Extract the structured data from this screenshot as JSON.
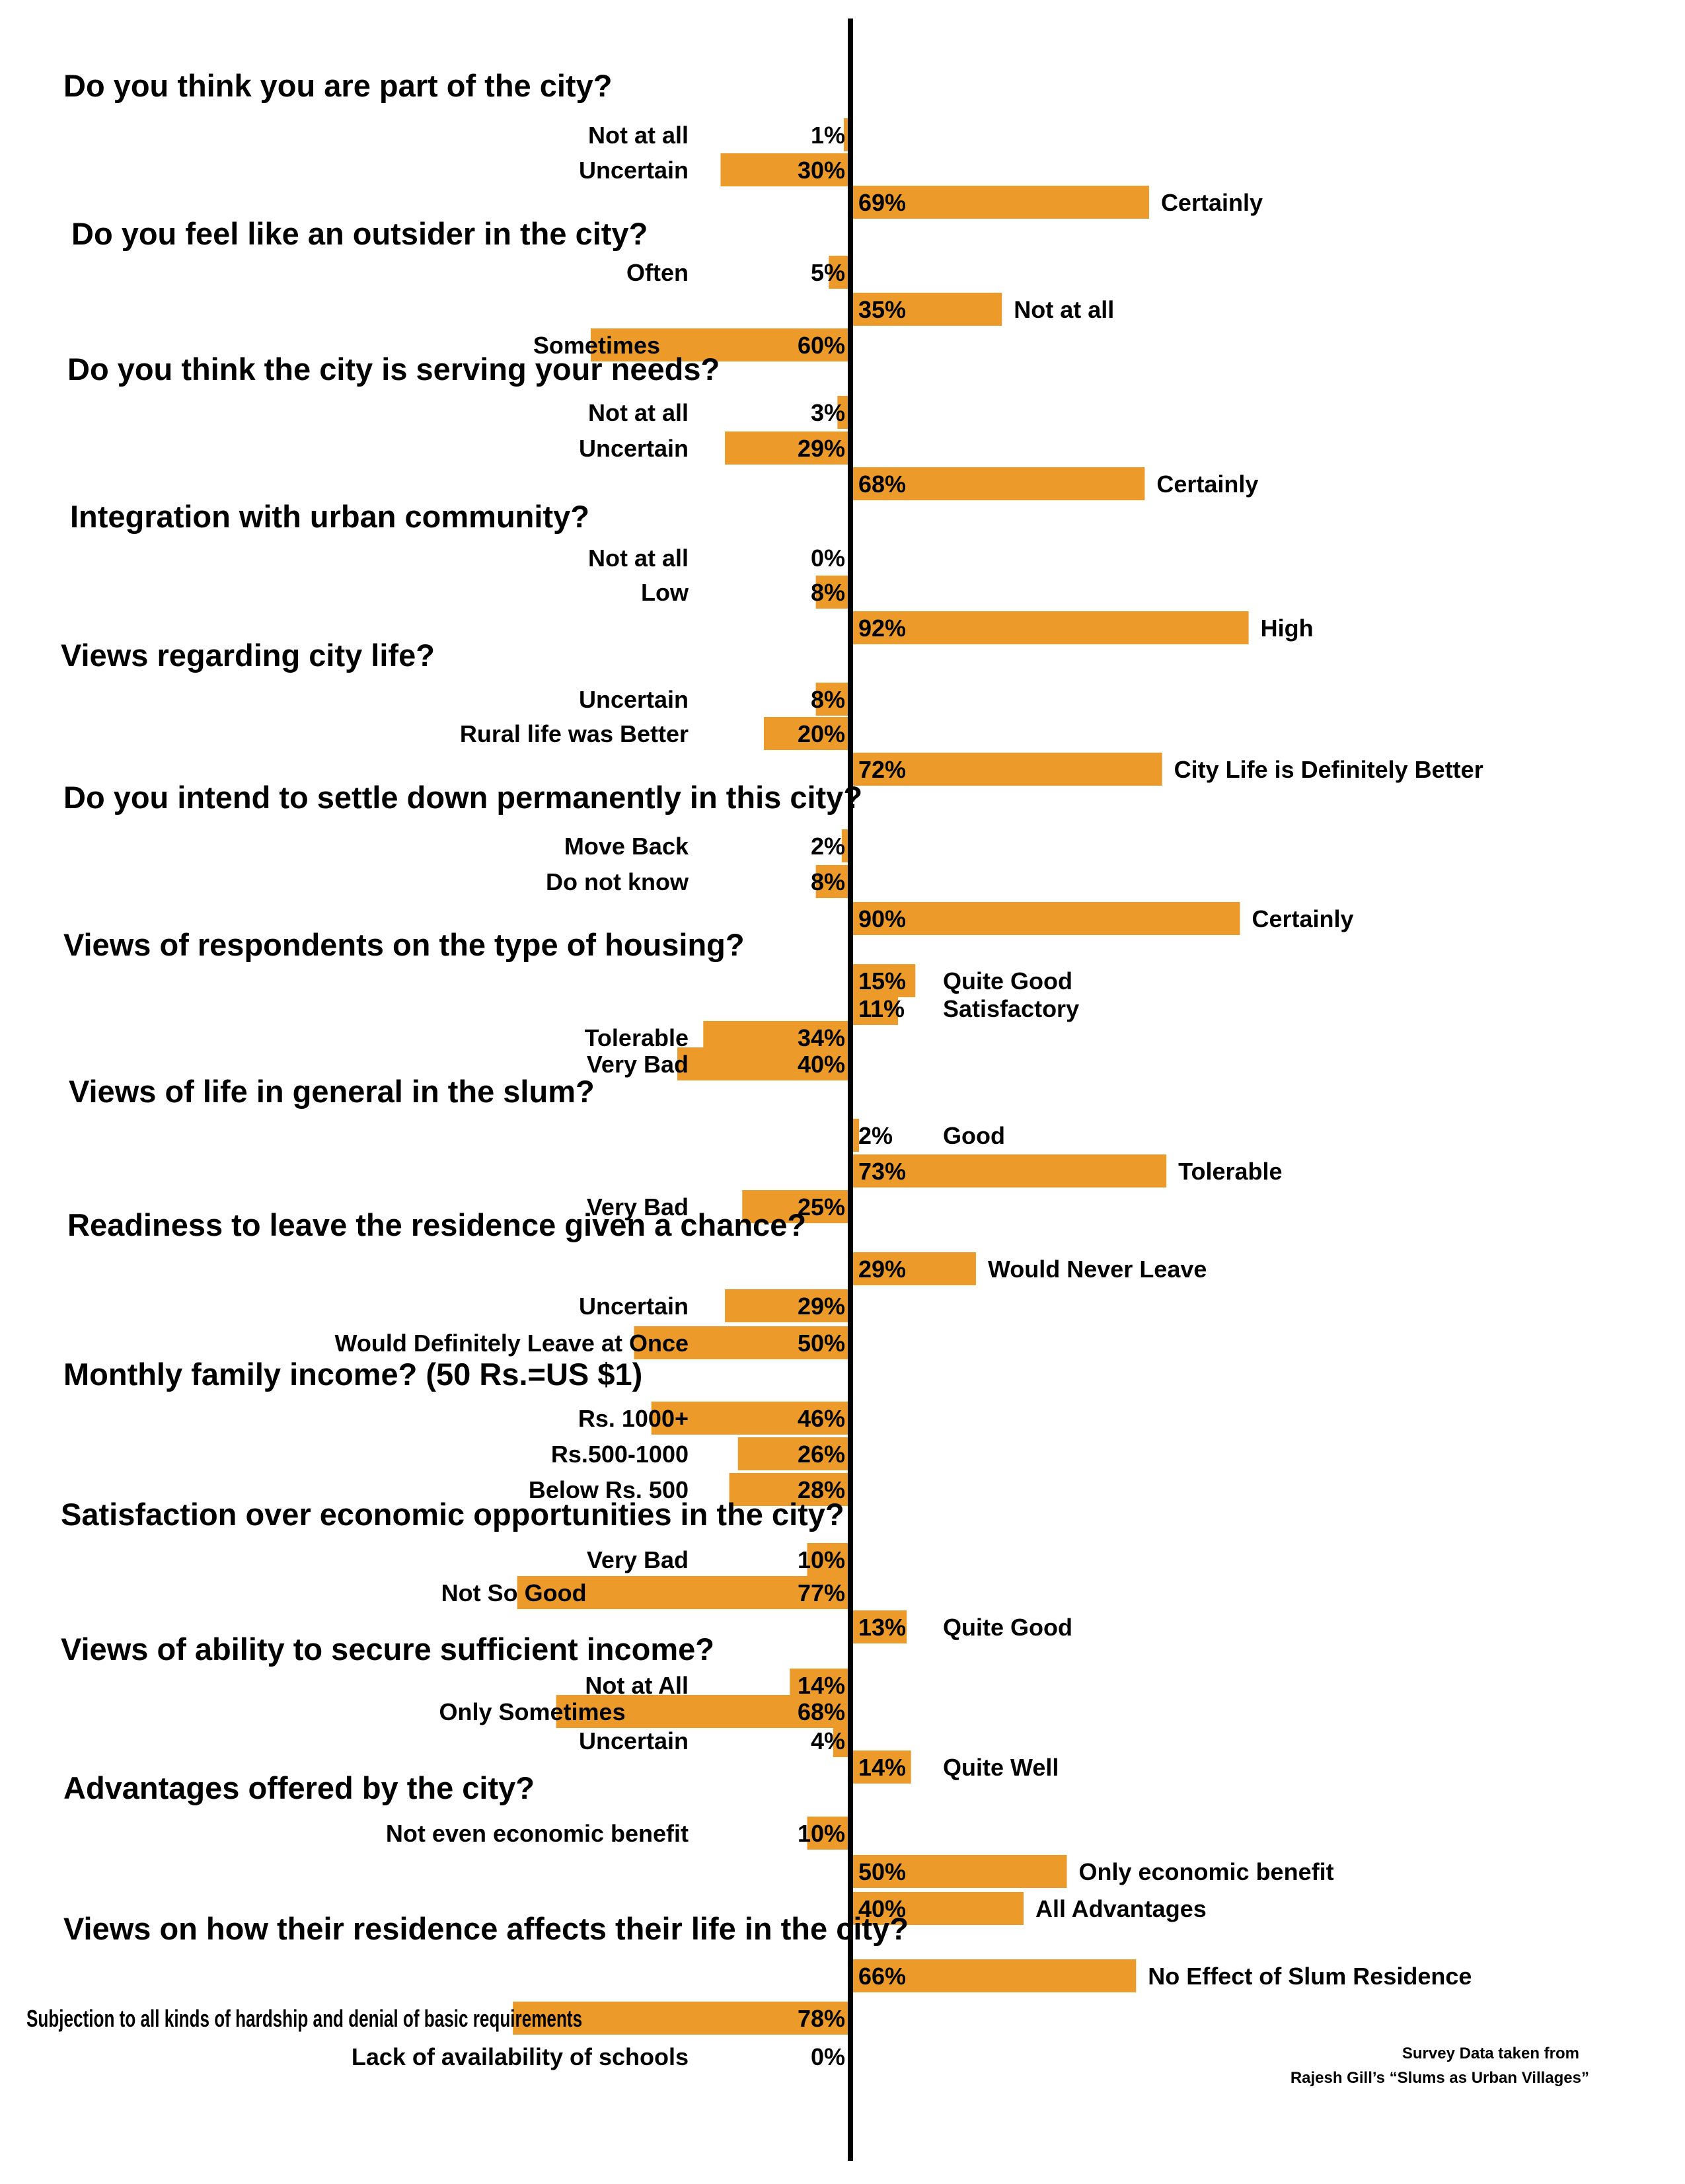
{
  "chart_data": {
    "type": "bar",
    "bar_color": "#ec9a29",
    "axis_color": "#000000",
    "questions": [
      {
        "title": "Do you think you are part of the city?",
        "items": [
          {
            "label": "Not at all",
            "value": 1,
            "value_text": "1%",
            "side": "left"
          },
          {
            "label": "Uncertain",
            "value": 30,
            "value_text": "30%",
            "side": "left"
          },
          {
            "label": "Certainly",
            "value": 69,
            "value_text": "69%",
            "side": "right"
          }
        ]
      },
      {
        "title": "Do you feel like an outsider in the city?",
        "items": [
          {
            "label": "Often",
            "value": 5,
            "value_text": "5%",
            "side": "left"
          },
          {
            "label": "Not at all",
            "value": 35,
            "value_text": "35%",
            "side": "right"
          },
          {
            "label": "Sometimes",
            "value": 60,
            "value_text": "60%",
            "side": "left"
          }
        ]
      },
      {
        "title": "Do you think the city is serving your needs?",
        "items": [
          {
            "label": "Not at all",
            "value": 3,
            "value_text": "3%",
            "side": "left"
          },
          {
            "label": "Uncertain",
            "value": 29,
            "value_text": "29%",
            "side": "left"
          },
          {
            "label": "Certainly",
            "value": 68,
            "value_text": "68%",
            "side": "right"
          }
        ]
      },
      {
        "title": "Integration with urban community?",
        "items": [
          {
            "label": "Not at all",
            "value": 0,
            "value_text": "0%",
            "side": "left"
          },
          {
            "label": "Low",
            "value": 8,
            "value_text": "8%",
            "side": "left"
          },
          {
            "label": "High",
            "value": 92,
            "value_text": "92%",
            "side": "right"
          }
        ]
      },
      {
        "title": "Views regarding city life?",
        "items": [
          {
            "label": "Uncertain",
            "value": 8,
            "value_text": "8%",
            "side": "left"
          },
          {
            "label": "Rural life was Better",
            "value": 20,
            "value_text": "20%",
            "side": "left"
          },
          {
            "label": "City Life is Definitely Better",
            "value": 72,
            "value_text": "72%",
            "side": "right"
          }
        ]
      },
      {
        "title": "Do you intend to settle down permanently in this city?",
        "items": [
          {
            "label": "Move Back",
            "value": 2,
            "value_text": "2%",
            "side": "left"
          },
          {
            "label": "Do not know",
            "value": 8,
            "value_text": "8%",
            "side": "left"
          },
          {
            "label": "Certainly",
            "value": 90,
            "value_text": "90%",
            "side": "right"
          }
        ]
      },
      {
        "title": "Views of respondents on the type of housing?",
        "items": [
          {
            "label": "Quite Good",
            "value": 15,
            "value_text": "15%",
            "side": "right"
          },
          {
            "label": "Satisfactory",
            "value": 11,
            "value_text": "11%",
            "side": "right"
          },
          {
            "label": "Tolerable",
            "value": 34,
            "value_text": "34%",
            "side": "left"
          },
          {
            "label": "Very Bad",
            "value": 40,
            "value_text": "40%",
            "side": "left"
          }
        ]
      },
      {
        "title": "Views of  life  in general in the slum?",
        "items": [
          {
            "label": "Good",
            "value": 2,
            "value_text": "2%",
            "side": "right"
          },
          {
            "label": "Tolerable",
            "value": 73,
            "value_text": "73%",
            "side": "right"
          },
          {
            "label": "Very Bad",
            "value": 25,
            "value_text": "25%",
            "side": "left"
          }
        ]
      },
      {
        "title": "Readiness to leave the residence given a chance?",
        "items": [
          {
            "label": "Would Never Leave",
            "value": 29,
            "value_text": "29%",
            "side": "right"
          },
          {
            "label": "Uncertain",
            "value": 29,
            "value_text": "29%",
            "side": "left"
          },
          {
            "label": "Would Definitely Leave at Once",
            "value": 50,
            "value_text": "50%",
            "side": "left"
          }
        ]
      },
      {
        "title": "Monthly family income? (50 Rs.=US $1)",
        "items": [
          {
            "label": "Rs. 1000+",
            "value": 46,
            "value_text": "46%",
            "side": "left"
          },
          {
            "label": "Rs.500-1000",
            "value": 26,
            "value_text": "26%",
            "side": "left"
          },
          {
            "label": "Below Rs. 500",
            "value": 28,
            "value_text": "28%",
            "side": "left"
          }
        ]
      },
      {
        "title": "Satisfaction over economic opportunities in the city?",
        "items": [
          {
            "label": "Very Bad",
            "value": 10,
            "value_text": "10%",
            "side": "left"
          },
          {
            "label": "Not So Good",
            "value": 77,
            "value_text": "77%",
            "side": "left"
          },
          {
            "label": "Quite Good",
            "value": 13,
            "value_text": "13%",
            "side": "right"
          }
        ]
      },
      {
        "title": "Views of ability to secure sufficient income?",
        "items": [
          {
            "label": "Not at All",
            "value": 14,
            "value_text": "14%",
            "side": "left"
          },
          {
            "label": "Only Sometimes",
            "value": 68,
            "value_text": "68%",
            "side": "left"
          },
          {
            "label": "Uncertain",
            "value": 4,
            "value_text": "4%",
            "side": "left"
          },
          {
            "label": "Quite Well",
            "value": 14,
            "value_text": "14%",
            "side": "right"
          }
        ]
      },
      {
        "title": "Advantages offered by  the city?",
        "items": [
          {
            "label": "Not even economic benefit",
            "value": 10,
            "value_text": "10%",
            "side": "left"
          },
          {
            "label": "Only economic benefit",
            "value": 50,
            "value_text": "50%",
            "side": "right"
          },
          {
            "label": "All Advantages",
            "value": 40,
            "value_text": "40%",
            "side": "right"
          }
        ]
      },
      {
        "title": "Views on how their residence affects their life in the city?",
        "items": [
          {
            "label": "No Effect of Slum Residence",
            "value": 66,
            "value_text": "66%",
            "side": "right"
          },
          {
            "label": "Subjection to all kinds of hardship and denial of basic requirements",
            "value": 78,
            "value_text": "78%",
            "side": "left"
          },
          {
            "label": "Lack of availability of schools",
            "value": 0,
            "value_text": "0%",
            "side": "left"
          }
        ]
      }
    ]
  },
  "source": {
    "line1": "Survey Data taken from",
    "line2": "Rajesh Gill’s “Slums as Urban Villages”"
  }
}
